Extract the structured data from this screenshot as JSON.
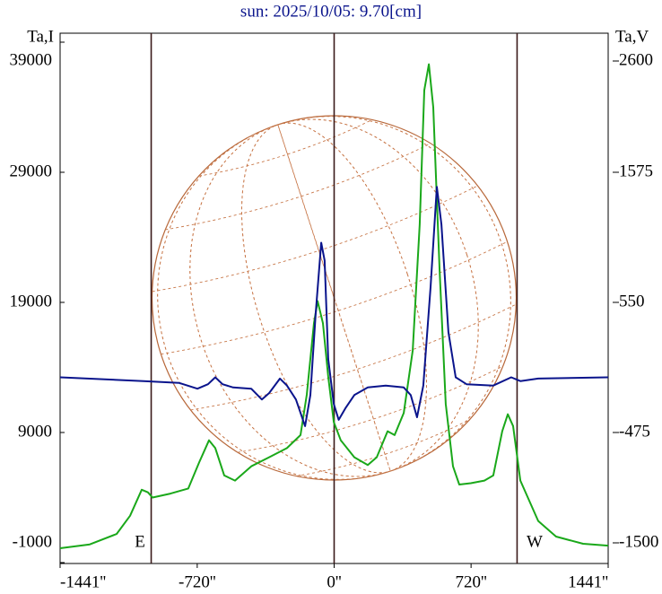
{
  "chart_data": {
    "type": "line",
    "title": "sun: 2025/10/05: 9.70[cm]",
    "y_label": "Ta,I",
    "y2_label": "Ta,V",
    "annotations": [
      "E",
      "W"
    ],
    "xlim": [
      -1441,
      1441
    ],
    "xticks": [
      {
        "value": -1441,
        "label": "-1441''"
      },
      {
        "value": -720,
        "label": "-720''"
      },
      {
        "value": 0,
        "label": "0''"
      },
      {
        "value": 720,
        "label": "720''"
      },
      {
        "value": 1441,
        "label": "1441''"
      }
    ],
    "reference_lines": [
      -962,
      0,
      962
    ],
    "ylim": [
      -1000,
      39000
    ],
    "yticks": [
      -1000,
      9000,
      19000,
      29000,
      39000
    ],
    "y2lim": [
      -1500,
      2600
    ],
    "y2ticks": [
      -1500,
      -475,
      550,
      1575,
      2600
    ],
    "series": [
      {
        "name": "Ta,I",
        "color": "#1aa81a",
        "x": [
          -1441,
          -1285,
          -1144,
          -1073,
          -1012,
          -979,
          -955,
          -861,
          -767,
          -710,
          -658,
          -625,
          -578,
          -521,
          -436,
          -342,
          -248,
          -177,
          -144,
          -106,
          -87,
          -59,
          -31,
          -2,
          35,
          106,
          177,
          224,
          281,
          318,
          366,
          413,
          450,
          474,
          498,
          521,
          554,
          587,
          625,
          658,
          719,
          790,
          837,
          884,
          913,
          941,
          979,
          1073,
          1167,
          1309,
          1441
        ],
        "values": [
          100,
          400,
          1200,
          2600,
          4600,
          4400,
          4000,
          4300,
          4700,
          6700,
          8400,
          7800,
          5700,
          5300,
          6400,
          7100,
          7800,
          8800,
          11900,
          17400,
          19100,
          17400,
          13300,
          9800,
          8400,
          7100,
          6500,
          7100,
          9100,
          8800,
          10500,
          15300,
          25000,
          35300,
          37300,
          34000,
          21600,
          11200,
          6400,
          5000,
          5100,
          5300,
          5700,
          9100,
          10400,
          9500,
          5300,
          2200,
          1000,
          450,
          300
        ]
      },
      {
        "name": "Ta,V",
        "color": "#0a148c",
        "axis": "y2",
        "x": [
          -1441,
          -1002,
          -814,
          -719,
          -663,
          -625,
          -587,
          -531,
          -436,
          -380,
          -342,
          -285,
          -248,
          -201,
          -153,
          -125,
          -97,
          -68,
          -50,
          -31,
          -2,
          24,
          59,
          106,
          177,
          271,
          366,
          403,
          436,
          469,
          507,
          540,
          564,
          601,
          639,
          696,
          837,
          931,
          979,
          1073,
          1441
        ],
        "values": [
          -40,
          -70,
          -85,
          -130,
          -95,
          -40,
          -95,
          -120,
          -130,
          -215,
          -165,
          -50,
          -105,
          -215,
          -425,
          -180,
          460,
          1020,
          880,
          105,
          -250,
          -375,
          -285,
          -180,
          -120,
          -105,
          -120,
          -180,
          -355,
          -105,
          670,
          1460,
          1165,
          315,
          -40,
          -95,
          -105,
          -40,
          -70,
          -50,
          -40
        ]
      }
    ]
  }
}
